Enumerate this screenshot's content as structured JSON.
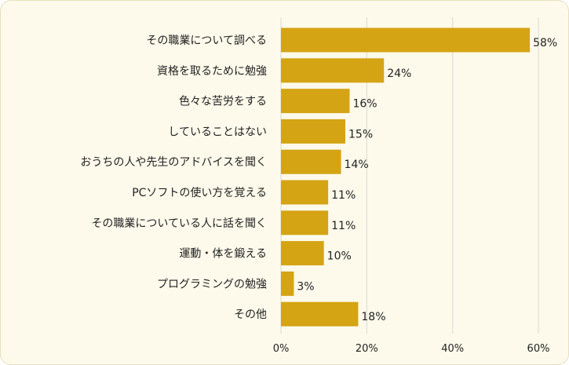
{
  "chart_data": {
    "type": "bar",
    "orientation": "horizontal",
    "title": "",
    "xlabel": "",
    "ylabel": "",
    "categories": [
      "その職業について調べる",
      "資格を取るために勉強",
      "色々な苦労をする",
      "していることはない",
      "おうちの人や先生のアドバイスを聞く",
      "PCソフトの使い方を覚える",
      "その職業についている人に話を聞く",
      "運動・体を鍛える",
      "プログラミングの勉強",
      "その他"
    ],
    "values": [
      58,
      24,
      16,
      15,
      14,
      11,
      11,
      10,
      3,
      18
    ],
    "value_labels": [
      "58%",
      "24%",
      "16%",
      "15%",
      "14%",
      "11%",
      "11%",
      "10%",
      "3%",
      "18%"
    ],
    "xlim": [
      0,
      60
    ],
    "ticks": [
      0,
      20,
      40,
      60
    ],
    "tick_labels": [
      "0%",
      "20%",
      "40%",
      "60%"
    ],
    "grid": true,
    "legend": "none",
    "colors": {
      "bar": "#d4a415",
      "grid": "#d9d9d9",
      "background": "#fdfaeb"
    }
  }
}
